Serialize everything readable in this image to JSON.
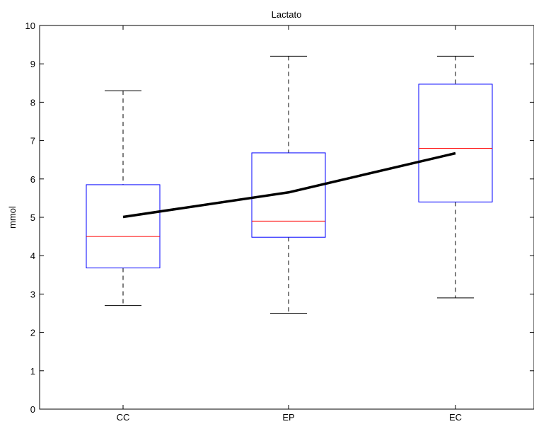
{
  "chart_data": {
    "type": "box",
    "title": "Lactato",
    "xlabel": "",
    "ylabel": "mmol",
    "ylim": [
      0,
      10
    ],
    "yticks": [
      "0",
      "1",
      "2",
      "3",
      "4",
      "5",
      "6",
      "7",
      "8",
      "9",
      "10"
    ],
    "categories": [
      "CC",
      "EP",
      "EC"
    ],
    "boxes": [
      {
        "category": "CC",
        "whisker_low": 2.7,
        "q1": 3.68,
        "median": 4.5,
        "q3": 5.85,
        "whisker_high": 8.3
      },
      {
        "category": "EP",
        "whisker_low": 2.5,
        "q1": 4.48,
        "median": 4.9,
        "q3": 6.68,
        "whisker_high": 9.2
      },
      {
        "category": "EC",
        "whisker_low": 2.9,
        "q1": 5.4,
        "median": 6.8,
        "q3": 8.47,
        "whisker_high": 9.2
      }
    ],
    "mean_line": [
      5.01,
      5.65,
      6.67
    ],
    "colors": {
      "box": "#0000ff",
      "median": "#ff0000",
      "whisker": "#000000",
      "mean_line": "#000000"
    },
    "grid": false,
    "legend": "none"
  }
}
